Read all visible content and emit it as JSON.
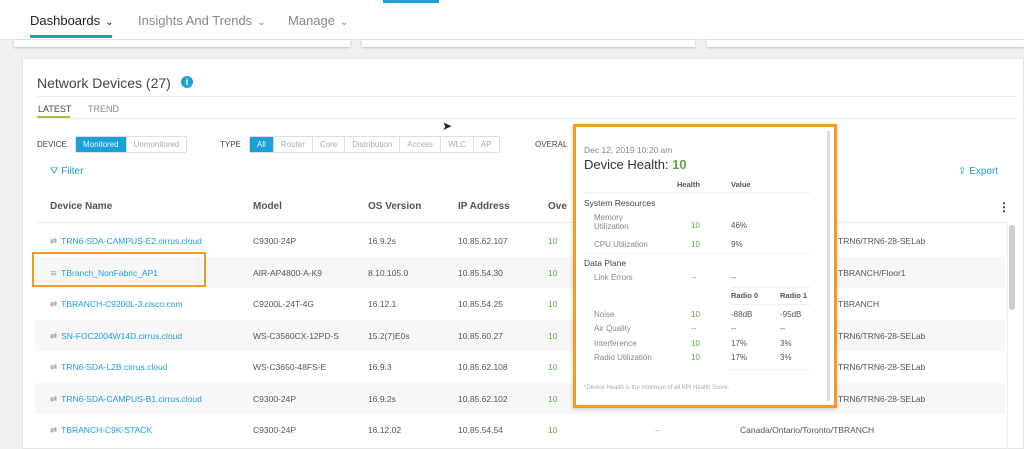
{
  "nav": {
    "tabs": [
      {
        "label": "Dashboards"
      },
      {
        "label": "Insights And Trends"
      },
      {
        "label": "Manage"
      }
    ],
    "chevron": "⌄"
  },
  "section": {
    "title": "Network Devices (27)",
    "info_icon": "i",
    "subtabs": [
      "LATEST",
      "TREND"
    ]
  },
  "filters": {
    "device_label": "DEVICE",
    "device_options": [
      "Monitored",
      "Unmonitored"
    ],
    "type_label": "TYPE",
    "type_options": [
      "All",
      "Router",
      "Core",
      "Distribution",
      "Access",
      "WLC",
      "AP"
    ],
    "overall_label": "OVERAL",
    "filter_label": "Filter",
    "export_label": "Export"
  },
  "table": {
    "headers": [
      "Device Name",
      "Model",
      "OS Version",
      "IP Address",
      "Ove"
    ],
    "rows": [
      {
        "name": "TRN6-SDA-CAMPUS-E2.cirrus.cloud",
        "icon": "switch",
        "model": "C9300-24P",
        "os": "16.9.2s",
        "ip": "10.85.62.107",
        "health": "10",
        "location": "TRN6/TRN6-28-SELab"
      },
      {
        "name": "TBranch_NonFabric_AP1",
        "icon": "wifi",
        "model": "AIR-AP4800-A-K9",
        "os": "8.10.105.0",
        "ip": "10.85.54.30",
        "health": "10",
        "location": "TBRANCH/Floor1"
      },
      {
        "name": "TBRANCH-C9200L-3.cisco.com",
        "icon": "switch",
        "model": "C9200L-24T-4G",
        "os": "16.12.1",
        "ip": "10.85.54.25",
        "health": "10",
        "location": "TBRANCH"
      },
      {
        "name": "SN-FOC2004W14D.cirrus.cloud",
        "icon": "switch",
        "model": "WS-C3560CX-12PD-S",
        "os": "15.2(7)E0s",
        "ip": "10.85.60.27",
        "health": "10",
        "location": "TRN6/TRN6-28-SELab"
      },
      {
        "name": "TRN6-SDA-L2B.cirrus.cloud",
        "icon": "switch",
        "model": "WS-C3650-48FS-E",
        "os": "16.9.3",
        "ip": "10.85.62.108",
        "health": "10",
        "location": "TRN6/TRN6-28-SELab"
      },
      {
        "name": "TRN6-SDA-CAMPUS-B1.cirrus.cloud",
        "icon": "switch",
        "model": "C9300-24P",
        "os": "16.9.2s",
        "ip": "10.85.62.102",
        "health": "10",
        "location": "TRN6/TRN6-28-SELab"
      },
      {
        "name": "TBRANCH-C9K-STACK",
        "icon": "switch",
        "model": "C9300-24P",
        "os": "16.12.02",
        "ip": "10.85.54.54",
        "health": "10",
        "extra": "--",
        "location": "Canada/Ontario/Toronto/TBRANCH"
      }
    ]
  },
  "popover": {
    "date": "Dec 12, 2019 10:20 am",
    "title": "Device Health:",
    "score": "10",
    "col_health": "Health",
    "col_value": "Value",
    "sys_title": "System Resources",
    "mem_label": "Memory Utilization",
    "mem_health": "10",
    "mem_value": "46%",
    "cpu_label": "CPU Utilization",
    "cpu_health": "10",
    "cpu_value": "9%",
    "dp_title": "Data Plane",
    "link_label": "Link Errors",
    "link_health": "--",
    "link_value": "--",
    "radio0": "Radio 0",
    "radio1": "Radio 1",
    "noise_label": "Noise",
    "noise_health": "10",
    "noise_r0": "-88dB",
    "noise_r1": "-95dB",
    "air_label": "Air Quality",
    "air_health": "--",
    "air_r0": "--",
    "air_r1": "--",
    "intf_label": "Interference",
    "intf_health": "10",
    "intf_r0": "17%",
    "intf_r1": "3%",
    "ru_label": "Radio Utilization",
    "ru_health": "10",
    "ru_r0": "17%",
    "ru_r1": "3%",
    "note": "*Device Health is the minimum of all KPI Health Score."
  },
  "colors": {
    "accent": "#1ba0d7",
    "highlight": "#f29a23",
    "good": "#5aa845"
  }
}
